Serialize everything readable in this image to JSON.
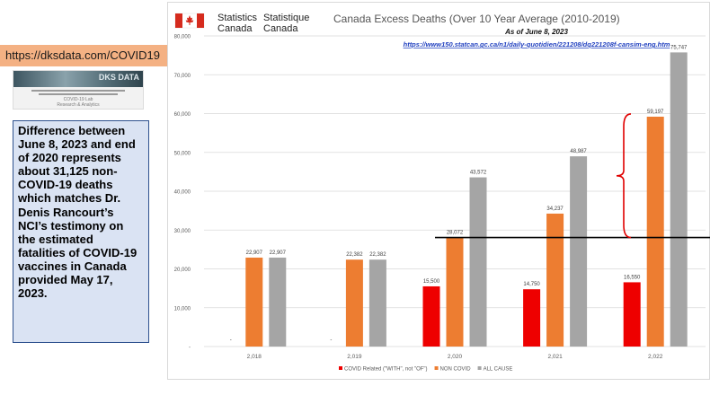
{
  "url_badge": "https://dksdata.com/COVID19",
  "thumbnail": {
    "logo_text": "DKS DATA",
    "caption_title": "COVID-19 Lab",
    "caption_sub": "Research & Analytics"
  },
  "note": "Difference between June 8, 2023 and end of 2020 represents about 31,125 non-COVID-19 deaths which matches Dr. Denis Rancourt’s NCI’s testimony on the estimated fatalities of COVID-19 vaccines in Canada provided May 17, 2023.",
  "header": {
    "statcan_en_1": "Statistics",
    "statcan_en_2": "Canada",
    "statcan_fr_1": "Statistique",
    "statcan_fr_2": "Canada",
    "flag_color": "#d52b1e"
  },
  "chart_data": {
    "type": "bar",
    "title": "Canada Excess Deaths (Over 10 Year Average (2010-2019)",
    "subtitle": "As of June 8, 2023",
    "source_url": "https://www150.statcan.gc.ca/n1/daily-quotidien/221208/dq221208f-cansim-eng.htm",
    "categories": [
      "2,018",
      "2,019",
      "2,020",
      "2,021",
      "2,022"
    ],
    "series": [
      {
        "name": "COVID Related (\"WITH\", not \"OF\")",
        "color": "#ee0000",
        "values": [
          0,
          0,
          15500,
          14750,
          16550
        ]
      },
      {
        "name": "NON COVID",
        "color": "#ed7d31",
        "values": [
          22907,
          22382,
          28072,
          34237,
          59197
        ]
      },
      {
        "name": "ALL CAUSE",
        "color": "#a5a5a5",
        "values": [
          22907,
          22382,
          43572,
          48987,
          75747
        ]
      }
    ],
    "data_labels": [
      [
        "-",
        "-",
        "15,500",
        "14,750",
        "16,550"
      ],
      [
        "22,907",
        "22,382",
        "28,072",
        "34,237",
        "59,197"
      ],
      [
        "22,907",
        "22,382",
        "43,572",
        "48,987",
        "75,747"
      ]
    ],
    "y_ticks": [
      "-",
      "10,000",
      "20,000",
      "30,000",
      "40,000",
      "50,000",
      "60,000",
      "70,000",
      "80,000"
    ],
    "y_tick_values": [
      0,
      10000,
      20000,
      30000,
      40000,
      50000,
      60000,
      70000,
      80000
    ],
    "ylim": [
      0,
      80000
    ],
    "grid": true,
    "legend_position": "bottom",
    "reference_line_value": 28072,
    "bracket_range": [
      28072,
      59197
    ]
  }
}
